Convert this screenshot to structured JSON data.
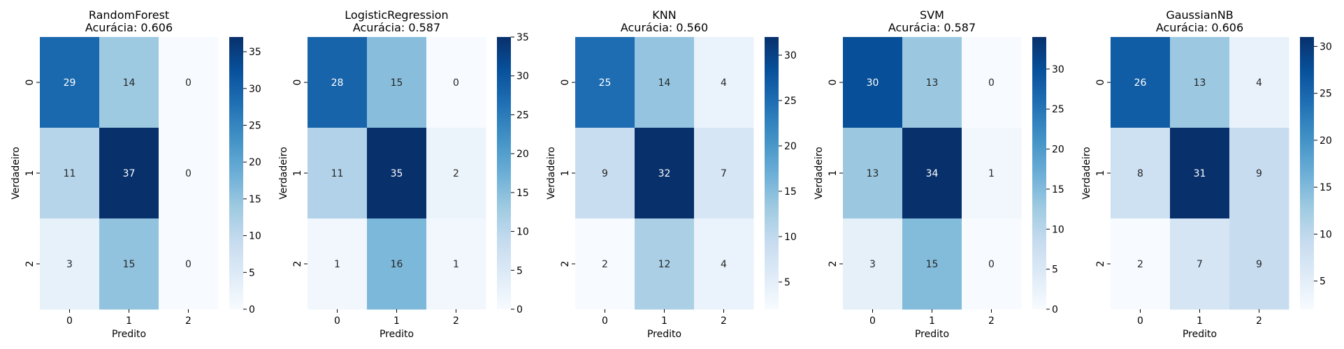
{
  "chart_data": [
    {
      "type": "heatmap",
      "title": "RandomForest",
      "subtitle": "Acurácia: 0.606",
      "xlabel": "Predito",
      "ylabel": "Verdadeiro",
      "x_categories": [
        "0",
        "1",
        "2"
      ],
      "y_categories": [
        "0",
        "1",
        "2"
      ],
      "values": [
        [
          29,
          14,
          0
        ],
        [
          11,
          37,
          0
        ],
        [
          3,
          15,
          0
        ]
      ],
      "colorbar": {
        "min": 0,
        "max": 37,
        "ticks": [
          0,
          5,
          10,
          15,
          20,
          25,
          30,
          35
        ]
      },
      "colormap": "Blues"
    },
    {
      "type": "heatmap",
      "title": "LogisticRegression",
      "subtitle": "Acurácia: 0.587",
      "xlabel": "Predito",
      "ylabel": "Verdadeiro",
      "x_categories": [
        "0",
        "1",
        "2"
      ],
      "y_categories": [
        "0",
        "1",
        "2"
      ],
      "values": [
        [
          28,
          15,
          0
        ],
        [
          11,
          35,
          2
        ],
        [
          1,
          16,
          1
        ]
      ],
      "colorbar": {
        "min": 0,
        "max": 35,
        "ticks": [
          0,
          5,
          10,
          15,
          20,
          25,
          30,
          35
        ]
      },
      "colormap": "Blues"
    },
    {
      "type": "heatmap",
      "title": "KNN",
      "subtitle": "Acurácia: 0.560",
      "xlabel": "Predito",
      "ylabel": "Verdadeiro",
      "x_categories": [
        "0",
        "1",
        "2"
      ],
      "y_categories": [
        "0",
        "1",
        "2"
      ],
      "values": [
        [
          25,
          14,
          4
        ],
        [
          9,
          32,
          7
        ],
        [
          2,
          12,
          4
        ]
      ],
      "colorbar": {
        "min": 2,
        "max": 32,
        "ticks": [
          5,
          10,
          15,
          20,
          25,
          30
        ]
      },
      "colormap": "Blues"
    },
    {
      "type": "heatmap",
      "title": "SVM",
      "subtitle": "Acurácia: 0.587",
      "xlabel": "Predito",
      "ylabel": "Verdadeiro",
      "x_categories": [
        "0",
        "1",
        "2"
      ],
      "y_categories": [
        "0",
        "1",
        "2"
      ],
      "values": [
        [
          30,
          13,
          0
        ],
        [
          13,
          34,
          1
        ],
        [
          3,
          15,
          0
        ]
      ],
      "colorbar": {
        "min": 0,
        "max": 34,
        "ticks": [
          0,
          5,
          10,
          15,
          20,
          25,
          30
        ]
      },
      "colormap": "Blues"
    },
    {
      "type": "heatmap",
      "title": "GaussianNB",
      "subtitle": "Acurácia: 0.606",
      "xlabel": "Predito",
      "ylabel": "Verdadeiro",
      "x_categories": [
        "0",
        "1",
        "2"
      ],
      "y_categories": [
        "0",
        "1",
        "2"
      ],
      "values": [
        [
          26,
          13,
          4
        ],
        [
          8,
          31,
          9
        ],
        [
          2,
          7,
          9
        ]
      ],
      "colorbar": {
        "min": 2,
        "max": 31,
        "ticks": [
          5,
          10,
          15,
          20,
          25,
          30
        ]
      },
      "colormap": "Blues"
    }
  ]
}
